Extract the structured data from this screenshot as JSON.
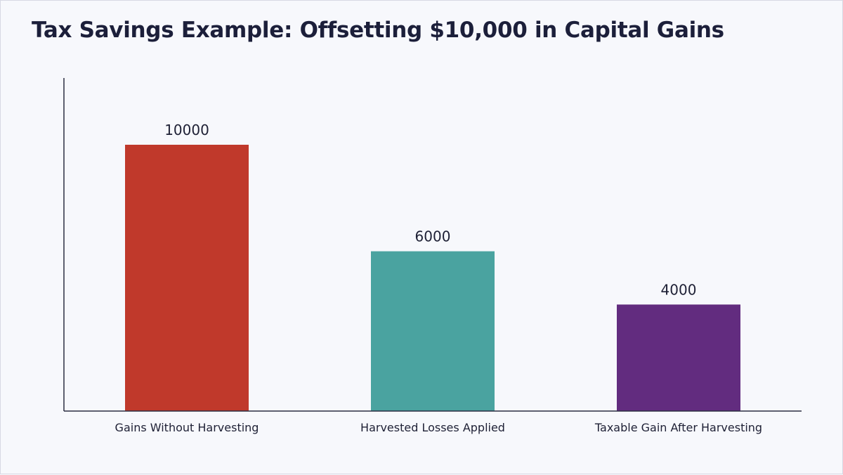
{
  "chart_data": {
    "type": "bar",
    "title": "Tax Savings Example: Offsetting $10,000 in Capital Gains",
    "xlabel": "",
    "ylabel": "",
    "categories": [
      "Gains Without Harvesting",
      "Harvested Losses Applied",
      "Taxable Gain After Harvesting"
    ],
    "values": [
      10000,
      6000,
      4000
    ],
    "data_labels": [
      "10000",
      "6000",
      "4000"
    ],
    "colors": [
      "#c0392b",
      "#4aa3a0",
      "#622c7f"
    ],
    "ylim": [
      0,
      10000
    ],
    "grid": false,
    "legend": "none"
  }
}
